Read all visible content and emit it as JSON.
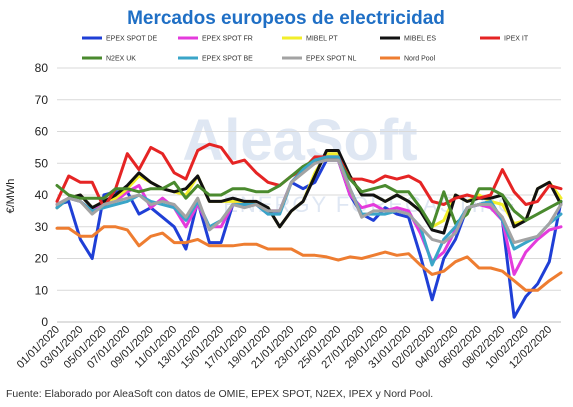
{
  "chart_data": {
    "type": "line",
    "title": "Mercados europeos de electricidad",
    "ylabel": "€/MWh",
    "ylim": [
      0,
      80
    ],
    "yticks": [
      "0",
      "10",
      "20",
      "30",
      "40",
      "50",
      "60",
      "70",
      "80"
    ],
    "x_tick_labels": [
      "01/01/2020",
      "03/01/2020",
      "05/01/2020",
      "07/01/2020",
      "09/01/2020",
      "11/01/2020",
      "13/01/2020",
      "15/01/2020",
      "17/01/2020",
      "19/01/2020",
      "21/01/2020",
      "23/01/2020",
      "25/01/2020",
      "27/01/2020",
      "29/01/2020",
      "31/01/2020",
      "02/02/2020",
      "04/02/2020",
      "06/02/2020",
      "08/02/2020",
      "10/02/2020",
      "12/02/2020"
    ],
    "x": [
      "01/01/2020",
      "02/01/2020",
      "03/01/2020",
      "04/01/2020",
      "05/01/2020",
      "06/01/2020",
      "07/01/2020",
      "08/01/2020",
      "09/01/2020",
      "10/01/2020",
      "11/01/2020",
      "12/01/2020",
      "13/01/2020",
      "14/01/2020",
      "15/01/2020",
      "16/01/2020",
      "17/01/2020",
      "18/01/2020",
      "19/01/2020",
      "20/01/2020",
      "21/01/2020",
      "22/01/2020",
      "23/01/2020",
      "24/01/2020",
      "25/01/2020",
      "26/01/2020",
      "27/01/2020",
      "28/01/2020",
      "29/01/2020",
      "30/01/2020",
      "31/01/2020",
      "01/02/2020",
      "02/02/2020",
      "03/02/2020",
      "04/02/2020",
      "05/02/2020",
      "06/02/2020",
      "07/02/2020",
      "08/02/2020",
      "09/02/2020",
      "10/02/2020",
      "11/02/2020",
      "12/02/2020",
      "13/02/2020"
    ],
    "grid": true,
    "legend_position": "top",
    "series": [
      {
        "name": "EPEX SPOT DE",
        "color": "#1f3fd6",
        "values": [
          37,
          38,
          26,
          20,
          40,
          41,
          41,
          34,
          36,
          33,
          30,
          23,
          38,
          25,
          25,
          37,
          37,
          37,
          34,
          35,
          44,
          42,
          44,
          51,
          51,
          40,
          34,
          32,
          36,
          34,
          33,
          21,
          7,
          20,
          26,
          36,
          37,
          38,
          32,
          1.5,
          8,
          12,
          19,
          38
        ]
      },
      {
        "name": "EPEX SPOT FR",
        "color": "#e43bdc",
        "values": [
          37,
          39,
          38,
          35,
          37,
          38,
          41,
          43,
          36,
          39,
          36,
          30,
          37,
          30,
          30,
          37,
          38,
          37,
          35,
          35,
          44,
          48,
          50,
          51,
          51,
          40,
          36,
          37,
          35,
          36,
          35,
          28,
          19,
          22,
          29,
          36,
          37,
          36,
          32,
          15,
          22,
          26,
          29,
          30
        ]
      },
      {
        "name": "MIBEL PT",
        "color": "#f2ee2a",
        "values": [
          36,
          39,
          40,
          36,
          38,
          39,
          42,
          46,
          44,
          42,
          41,
          40,
          46,
          38,
          38,
          38,
          38,
          37,
          36,
          30,
          35,
          38,
          47,
          53,
          53,
          46,
          40,
          40,
          38,
          40,
          38,
          35,
          30,
          32,
          40,
          38,
          40,
          38,
          37,
          31,
          32,
          42,
          44,
          39
        ]
      },
      {
        "name": "MIBEL ES",
        "color": "#111111",
        "values": [
          36,
          39,
          40,
          36,
          38,
          40,
          43,
          47,
          44,
          42,
          41,
          42,
          46,
          38,
          38,
          39,
          38,
          38,
          36,
          30,
          35,
          38,
          46,
          54,
          54,
          46,
          40,
          40,
          38,
          40,
          38,
          35,
          29,
          28,
          40,
          38,
          39,
          39,
          40,
          30,
          32,
          42,
          44,
          37
        ]
      },
      {
        "name": "IPEX IT",
        "color": "#e52424",
        "values": [
          38,
          46,
          44,
          44,
          36,
          42,
          53,
          48,
          55,
          53,
          47,
          45,
          54,
          56,
          55,
          50,
          51,
          47,
          44,
          43,
          46,
          48,
          52,
          52,
          52,
          45,
          45,
          44,
          46,
          45,
          46,
          44,
          38,
          37,
          39,
          40,
          39,
          40,
          48,
          41,
          37,
          38,
          43,
          42
        ]
      },
      {
        "name": "N2EX UK",
        "color": "#4a8a2e",
        "values": [
          43,
          40,
          39,
          39,
          39,
          42,
          42,
          41,
          42,
          42,
          44,
          39,
          43,
          40,
          40,
          42,
          42,
          41,
          41,
          43,
          46,
          49,
          51,
          51,
          51,
          45,
          41,
          42,
          43,
          41,
          41,
          36,
          30,
          41,
          31,
          34,
          42,
          42,
          40,
          35,
          32,
          34,
          36,
          38
        ]
      },
      {
        "name": "EPEX SPOT BE",
        "color": "#3aa5c8",
        "values": [
          36,
          39,
          38,
          35,
          36,
          37,
          38,
          40,
          38,
          37,
          36,
          32,
          38,
          30,
          32,
          37,
          37,
          37,
          34,
          34,
          44,
          48,
          51,
          52,
          52,
          42,
          34,
          34,
          34,
          35,
          34,
          30,
          18,
          26,
          30,
          36,
          37,
          38,
          32,
          23,
          25,
          27,
          31,
          34
        ]
      },
      {
        "name": "EPEX SPOT NL",
        "color": "#a3a3a3",
        "values": [
          37,
          39,
          38,
          34,
          37,
          38,
          39,
          40,
          37,
          38,
          37,
          33,
          39,
          29,
          32,
          37,
          36,
          37,
          35,
          35,
          44,
          47,
          50,
          51,
          51,
          42,
          33,
          35,
          35,
          35,
          34,
          30,
          26,
          25,
          28,
          36,
          37,
          37,
          33,
          25,
          26,
          27,
          31,
          37
        ]
      },
      {
        "name": "Nord Pool",
        "color": "#ee7d31",
        "values": [
          29.5,
          29.5,
          27,
          27,
          30,
          30,
          29,
          24,
          27,
          28,
          25,
          25,
          26,
          24,
          24,
          24,
          24.5,
          24.5,
          23,
          23,
          23,
          21,
          21,
          20.5,
          19.5,
          20.5,
          20,
          21,
          22,
          21,
          21.5,
          18,
          15,
          16,
          19,
          20.5,
          17,
          17,
          16,
          13,
          10,
          10,
          13,
          15.5
        ]
      }
    ]
  },
  "watermark": {
    "line1": "AleaSoft",
    "line2": "ENERGY FORECASTING"
  },
  "footer": "Fuente: Elaborado por AleaSoft con datos de OMIE, EPEX SPOT, N2EX, IPEX y Nord Pool."
}
